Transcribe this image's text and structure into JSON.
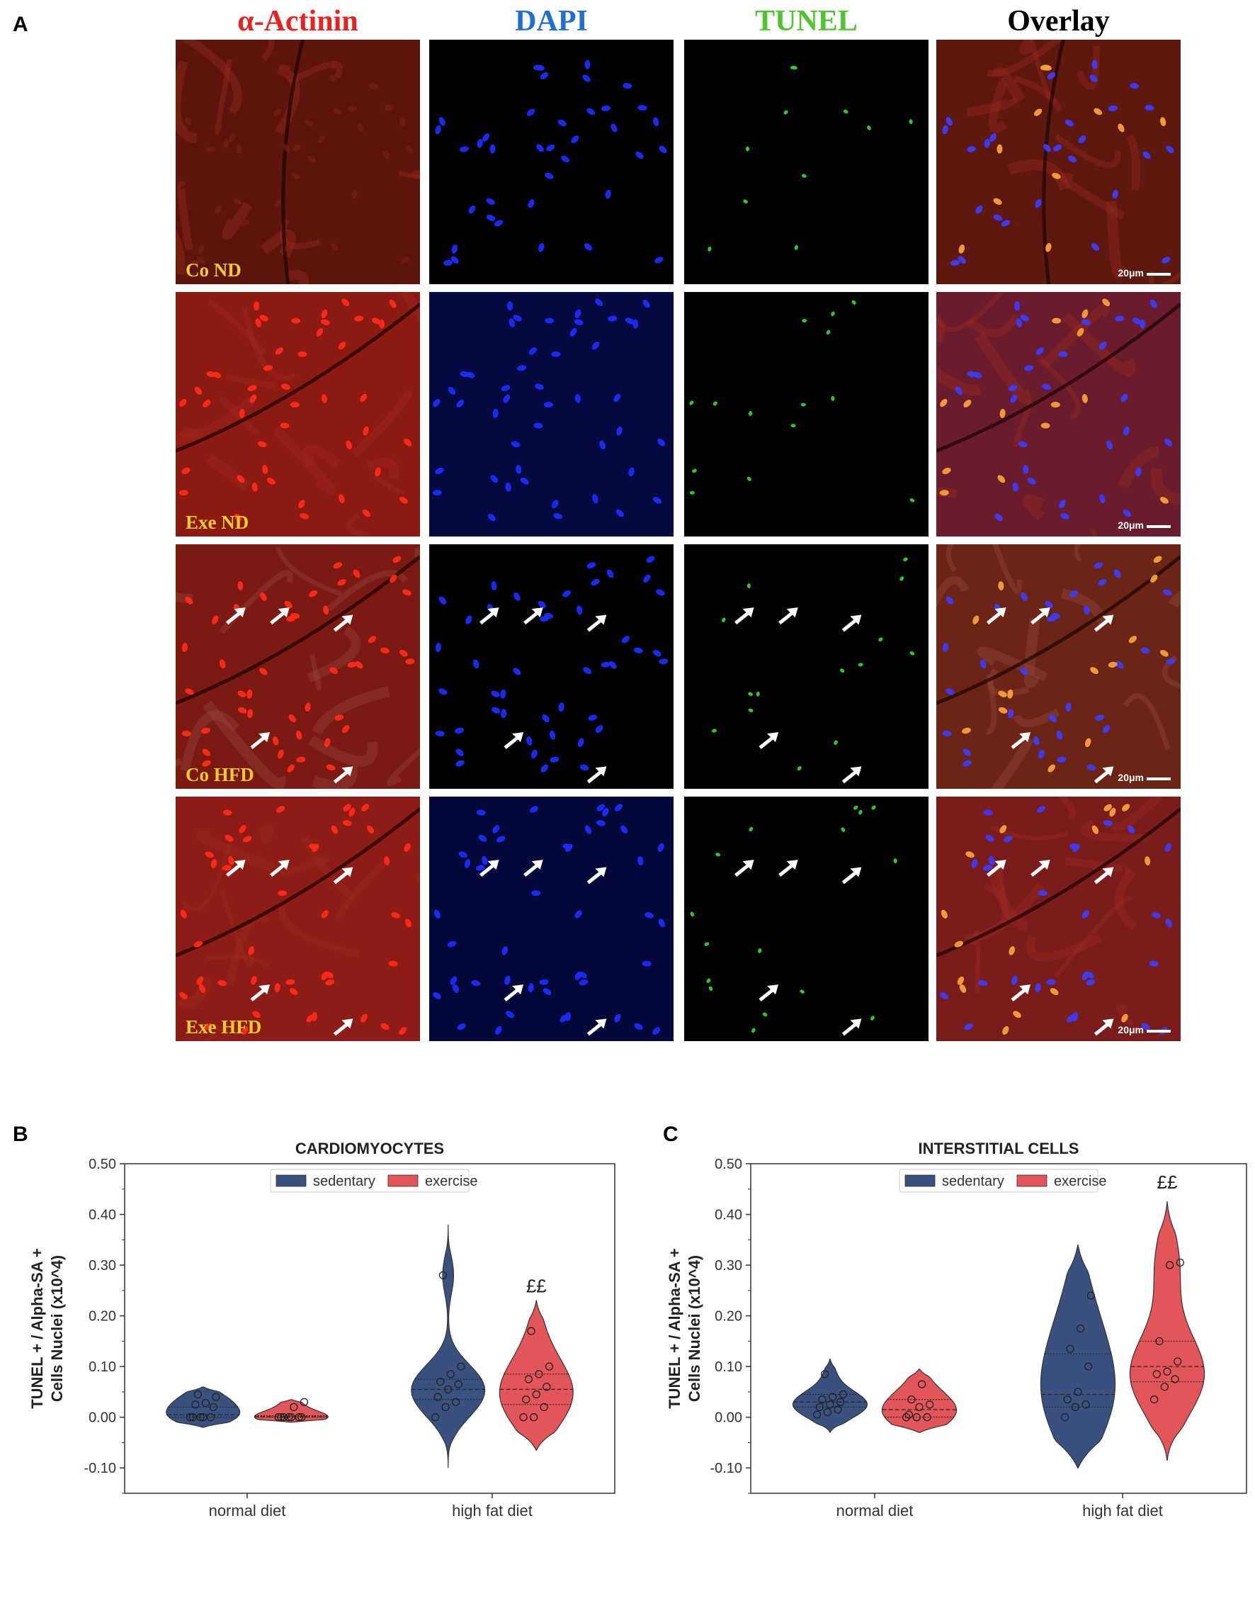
{
  "panel_a": {
    "letter": "A",
    "columns": [
      {
        "label": "α-Actinin",
        "color": "#e8231f"
      },
      {
        "label": "DAPI",
        "color": "#1f6fd1"
      },
      {
        "label": "TUNEL",
        "color": "#4ec42e"
      },
      {
        "label": "Overlay",
        "color": "#000000"
      }
    ],
    "rows": [
      {
        "label": "Co ND",
        "arrows": false
      },
      {
        "label": "Exe ND",
        "arrows": false
      },
      {
        "label": "Co HFD",
        "arrows": true
      },
      {
        "label": "Exe HFD",
        "arrows": true
      }
    ],
    "scale_bar_label": "20μm",
    "colors": {
      "actinin": "#7a1a12",
      "dapi": "#000000",
      "tunel": "#000000",
      "label": "#f2cc29"
    }
  },
  "chart_data": [
    {
      "panel_letter": "B",
      "type": "violin",
      "title": "CARDIOMYOCYTES",
      "xlabel": "",
      "ylabel": "TUNEL + / Alpha-SA + Cells Nuclei (x10^4)",
      "ylabel_lines": [
        "TUNEL + / Alpha-SA +",
        "Cells Nuclei (x10^4)"
      ],
      "ylim": [
        -0.15,
        0.5
      ],
      "yticks": [
        -0.1,
        0.0,
        0.1,
        0.2,
        0.3,
        0.4,
        0.5
      ],
      "ytick_labels": [
        "-0.10",
        "0.00",
        "0.10",
        "0.20",
        "0.30",
        "0.40",
        "0.50"
      ],
      "categories": [
        "normal diet",
        "high fat diet"
      ],
      "legend": {
        "position": "top-center",
        "entries": [
          "sedentary",
          "exercise"
        ]
      },
      "series": [
        {
          "name": "sedentary",
          "color": "#3a5180",
          "groups": [
            {
              "category": "normal diet",
              "range": [
                -0.02,
                0.06
              ],
              "quartiles": [
                0.0,
                0.005,
                0.02
              ],
              "points": [
                0.0,
                0.0,
                0.0,
                0.0,
                0.0,
                0.02,
                0.025,
                0.028,
                0.04,
                0.045
              ]
            },
            {
              "category": "high fat diet",
              "range": [
                -0.1,
                0.38
              ],
              "quartiles": [
                0.035,
                0.055,
                0.075
              ],
              "points": [
                0.0,
                0.02,
                0.03,
                0.04,
                0.055,
                0.065,
                0.07,
                0.085,
                0.1,
                0.28
              ]
            }
          ]
        },
        {
          "name": "exercise",
          "color": "#e25559",
          "groups": [
            {
              "category": "normal diet",
              "range": [
                -0.01,
                0.035
              ],
              "quartiles": [
                0.0,
                0.001,
                0.003
              ],
              "points": [
                0.0,
                0.0,
                0.0,
                0.0,
                0.0,
                0.0,
                0.0,
                0.02,
                0.03
              ]
            },
            {
              "category": "high fat diet",
              "range": [
                -0.065,
                0.23
              ],
              "quartiles": [
                0.025,
                0.055,
                0.085
              ],
              "points": [
                0.0,
                0.0,
                0.02,
                0.035,
                0.045,
                0.06,
                0.075,
                0.085,
                0.1,
                0.17
              ]
            }
          ]
        }
      ],
      "annotations": [
        {
          "text": "££",
          "category": "high fat diet",
          "series": "exercise",
          "y": 0.235
        }
      ]
    },
    {
      "panel_letter": "C",
      "type": "violin",
      "title": "INTERSTITIAL CELLS",
      "xlabel": "",
      "ylabel": "TUNEL + / Alpha-SA + Cells Nuclei (x10^4)",
      "ylabel_lines": [
        "TUNEL + / Alpha-SA +",
        "Cells Nuclei (x10^4)"
      ],
      "ylim": [
        -0.15,
        0.5
      ],
      "yticks": [
        -0.1,
        0.0,
        0.1,
        0.2,
        0.3,
        0.4,
        0.5
      ],
      "ytick_labels": [
        "-0.10",
        "0.00",
        "0.10",
        "0.20",
        "0.30",
        "0.40",
        "0.50"
      ],
      "categories": [
        "normal diet",
        "high fat diet"
      ],
      "legend": {
        "position": "top-center",
        "entries": [
          "sedentary",
          "exercise"
        ]
      },
      "series": [
        {
          "name": "sedentary",
          "color": "#3a5180",
          "groups": [
            {
              "category": "normal diet",
              "range": [
                -0.03,
                0.115
              ],
              "quartiles": [
                0.02,
                0.03,
                0.045
              ],
              "points": [
                0.005,
                0.01,
                0.015,
                0.02,
                0.025,
                0.03,
                0.035,
                0.04,
                0.045,
                0.085
              ]
            },
            {
              "category": "high fat diet",
              "range": [
                -0.1,
                0.34
              ],
              "quartiles": [
                0.02,
                0.045,
                0.125
              ],
              "points": [
                0.0,
                0.02,
                0.025,
                0.035,
                0.05,
                0.1,
                0.135,
                0.175,
                0.24
              ]
            }
          ]
        },
        {
          "name": "exercise",
          "color": "#e25559",
          "groups": [
            {
              "category": "normal diet",
              "range": [
                -0.03,
                0.095
              ],
              "quartiles": [
                0.0,
                0.015,
                0.035
              ],
              "points": [
                0.0,
                0.0,
                0.0,
                0.005,
                0.02,
                0.025,
                0.035,
                0.065
              ]
            },
            {
              "category": "high fat diet",
              "range": [
                -0.085,
                0.425
              ],
              "quartiles": [
                0.07,
                0.1,
                0.15
              ],
              "points": [
                0.035,
                0.06,
                0.075,
                0.085,
                0.09,
                0.11,
                0.15,
                0.3,
                0.305
              ]
            }
          ]
        }
      ],
      "annotations": [
        {
          "text": "££",
          "category": "high fat diet",
          "series": "exercise",
          "y": 0.44
        }
      ]
    }
  ]
}
